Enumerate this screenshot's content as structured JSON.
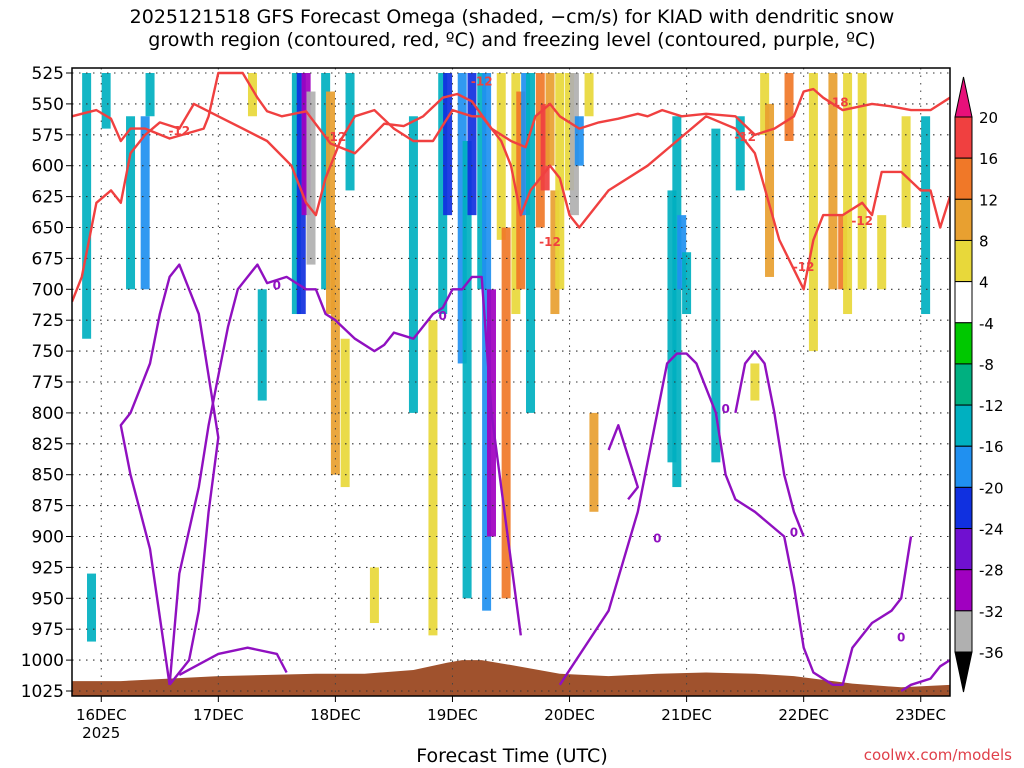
{
  "title": "2025121518 GFS Forecast Omega (shaded, −cm/s) for KIAD with dendritic snow\ngrowth region (contoured, red, ºC) and freezing level (contoured, purple, ºC)",
  "x_axis_title": "Forecast Time (UTC)",
  "credit": "coolwx.com/models",
  "chart_data": {
    "type": "heatmap",
    "title": "2025121518 GFS Forecast Omega (shaded, −cm/s) for KIAD with dendritic snow growth region (contoured, red, ºC) and freezing level (contoured, purple, ºC)",
    "xlabel": "Forecast Time (UTC)",
    "ylabel": "",
    "y_scale": "pressure (reversed)",
    "y_ticks": [
      525,
      550,
      575,
      600,
      625,
      650,
      675,
      700,
      725,
      750,
      775,
      800,
      825,
      850,
      875,
      900,
      925,
      950,
      975,
      1000,
      1025
    ],
    "ylim": [
      1025,
      525
    ],
    "x_ticks": [
      {
        "label": "16DEC",
        "sublabel": "2025",
        "hour": 6
      },
      {
        "label": "17DEC",
        "hour": 30
      },
      {
        "label": "18DEC",
        "hour": 54
      },
      {
        "label": "19DEC",
        "hour": 78
      },
      {
        "label": "20DEC",
        "hour": 102
      },
      {
        "label": "21DEC",
        "hour": 126
      },
      {
        "label": "22DEC",
        "hour": 150
      },
      {
        "label": "23DEC",
        "hour": 174
      }
    ],
    "xlim": [
      0,
      180
    ],
    "grid": true,
    "colorbar": {
      "labels": [
        20,
        16,
        12,
        8,
        4,
        -4,
        -8,
        -12,
        -16,
        -20,
        -24,
        -28,
        -32,
        -36
      ],
      "colors": [
        "#e8107a",
        "#f04040",
        "#f07828",
        "#e8a030",
        "#e8d83a",
        "#ffffff",
        "#00c800",
        "#00b080",
        "#00b0c0",
        "#2090f0",
        "#1030e0",
        "#7010d0",
        "#a000c0",
        "#b0b0b0",
        "#000000"
      ]
    },
    "omega_shading": [
      {
        "hour": 3,
        "p_top": 525,
        "p_bot": 740,
        "value": -8
      },
      {
        "hour": 4,
        "p_top": 930,
        "p_bot": 985,
        "value": -8
      },
      {
        "hour": 7,
        "p_top": 525,
        "p_bot": 570,
        "value": -8
      },
      {
        "hour": 12,
        "p_top": 560,
        "p_bot": 700,
        "value": -8
      },
      {
        "hour": 15,
        "p_top": 560,
        "p_bot": 700,
        "value": -12
      },
      {
        "hour": 16,
        "p_top": 525,
        "p_bot": 560,
        "value": -8
      },
      {
        "hour": 37,
        "p_top": 525,
        "p_bot": 560,
        "value": 4
      },
      {
        "hour": 39,
        "p_top": 700,
        "p_bot": 790,
        "value": -8
      },
      {
        "hour": 46,
        "p_top": 525,
        "p_bot": 720,
        "value": -8
      },
      {
        "hour": 47,
        "p_top": 525,
        "p_bot": 720,
        "value": -16
      },
      {
        "hour": 48,
        "p_top": 525,
        "p_bot": 640,
        "value": -24
      },
      {
        "hour": 49,
        "p_top": 540,
        "p_bot": 680,
        "value": -28
      },
      {
        "hour": 52,
        "p_top": 525,
        "p_bot": 700,
        "value": -8
      },
      {
        "hour": 53,
        "p_top": 540,
        "p_bot": 720,
        "value": 8
      },
      {
        "hour": 54,
        "p_top": 650,
        "p_bot": 850,
        "value": 8
      },
      {
        "hour": 56,
        "p_top": 740,
        "p_bot": 860,
        "value": 4
      },
      {
        "hour": 57,
        "p_top": 525,
        "p_bot": 620,
        "value": -8
      },
      {
        "hour": 62,
        "p_top": 925,
        "p_bot": 970,
        "value": 4
      },
      {
        "hour": 70,
        "p_top": 560,
        "p_bot": 800,
        "value": -8
      },
      {
        "hour": 74,
        "p_top": 725,
        "p_bot": 980,
        "value": 4
      },
      {
        "hour": 76,
        "p_top": 525,
        "p_bot": 720,
        "value": -8
      },
      {
        "hour": 77,
        "p_top": 525,
        "p_bot": 640,
        "value": -16
      },
      {
        "hour": 80,
        "p_top": 525,
        "p_bot": 760,
        "value": -12
      },
      {
        "hour": 81,
        "p_top": 580,
        "p_bot": 950,
        "value": -8
      },
      {
        "hour": 82,
        "p_top": 525,
        "p_bot": 640,
        "value": -16
      },
      {
        "hour": 84,
        "p_top": 525,
        "p_bot": 700,
        "value": -8
      },
      {
        "hour": 85,
        "p_top": 525,
        "p_bot": 960,
        "value": -12
      },
      {
        "hour": 86,
        "p_top": 700,
        "p_bot": 900,
        "value": -24
      },
      {
        "hour": 88,
        "p_top": 525,
        "p_bot": 660,
        "value": 4
      },
      {
        "hour": 89,
        "p_top": 650,
        "p_bot": 950,
        "value": 12
      },
      {
        "hour": 91,
        "p_top": 525,
        "p_bot": 720,
        "value": 4
      },
      {
        "hour": 92,
        "p_top": 540,
        "p_bot": 700,
        "value": 12
      },
      {
        "hour": 93,
        "p_top": 525,
        "p_bot": 640,
        "value": -12
      },
      {
        "hour": 94,
        "p_top": 525,
        "p_bot": 800,
        "value": -8
      },
      {
        "hour": 96,
        "p_top": 525,
        "p_bot": 650,
        "value": 12
      },
      {
        "hour": 97,
        "p_top": 550,
        "p_bot": 620,
        "value": 16
      },
      {
        "hour": 98,
        "p_top": 525,
        "p_bot": 600,
        "value": 8
      },
      {
        "hour": 99,
        "p_top": 620,
        "p_bot": 720,
        "value": 8
      },
      {
        "hour": 100,
        "p_top": 525,
        "p_bot": 700,
        "value": 4
      },
      {
        "hour": 102,
        "p_top": 525,
        "p_bot": 620,
        "value": 4
      },
      {
        "hour": 103,
        "p_top": 525,
        "p_bot": 640,
        "value": -28
      },
      {
        "hour": 104,
        "p_top": 560,
        "p_bot": 600,
        "value": -12
      },
      {
        "hour": 106,
        "p_top": 525,
        "p_bot": 560,
        "value": 4
      },
      {
        "hour": 107,
        "p_top": 800,
        "p_bot": 880,
        "value": 8
      },
      {
        "hour": 123,
        "p_top": 620,
        "p_bot": 840,
        "value": -8
      },
      {
        "hour": 124,
        "p_top": 560,
        "p_bot": 860,
        "value": -8
      },
      {
        "hour": 125,
        "p_top": 640,
        "p_bot": 700,
        "value": -12
      },
      {
        "hour": 126,
        "p_top": 670,
        "p_bot": 720,
        "value": -8
      },
      {
        "hour": 132,
        "p_top": 570,
        "p_bot": 840,
        "value": -8
      },
      {
        "hour": 137,
        "p_top": 560,
        "p_bot": 620,
        "value": -8
      },
      {
        "hour": 140,
        "p_top": 760,
        "p_bot": 790,
        "value": 4
      },
      {
        "hour": 142,
        "p_top": 525,
        "p_bot": 575,
        "value": 4
      },
      {
        "hour": 143,
        "p_top": 550,
        "p_bot": 690,
        "value": 8
      },
      {
        "hour": 147,
        "p_top": 525,
        "p_bot": 580,
        "value": 12
      },
      {
        "hour": 152,
        "p_top": 525,
        "p_bot": 750,
        "value": 4
      },
      {
        "hour": 156,
        "p_top": 525,
        "p_bot": 700,
        "value": 8
      },
      {
        "hour": 158,
        "p_top": 640,
        "p_bot": 700,
        "value": 12
      },
      {
        "hour": 159,
        "p_top": 525,
        "p_bot": 720,
        "value": 4
      },
      {
        "hour": 162,
        "p_top": 525,
        "p_bot": 700,
        "value": 4
      },
      {
        "hour": 166,
        "p_top": 640,
        "p_bot": 700,
        "value": 4
      },
      {
        "hour": 171,
        "p_top": 560,
        "p_bot": 650,
        "value": 4
      },
      {
        "hour": 175,
        "p_top": 560,
        "p_bot": 720,
        "value": -8
      }
    ],
    "terrain": {
      "color": "#a0522d",
      "x": [
        0,
        10,
        30,
        50,
        60,
        70,
        77,
        80,
        84,
        90,
        100,
        110,
        120,
        130,
        140,
        148,
        160,
        170,
        180
      ],
      "p_surface": [
        1017,
        1017,
        1013,
        1011,
        1011,
        1008,
        1002,
        1000,
        1000,
        1004,
        1011,
        1013,
        1011,
        1010,
        1011,
        1013,
        1019,
        1022,
        1020
      ]
    },
    "dgz_contours": {
      "color": "#f04040",
      "labels": [
        "-12",
        "-12",
        "-12",
        "-12",
        "-18",
        "-12",
        "-12",
        "-12"
      ],
      "upper": {
        "x": [
          0,
          5,
          8,
          10,
          12,
          15,
          20,
          27,
          28,
          30,
          35,
          38,
          40,
          43,
          48,
          53,
          58,
          60,
          64,
          68,
          72,
          76,
          79,
          82,
          86,
          90,
          93,
          95,
          98,
          100,
          104,
          108,
          112,
          116,
          118,
          121,
          125,
          130,
          136,
          140,
          144,
          148,
          150,
          152,
          154,
          158,
          164,
          168,
          172,
          176,
          180
        ],
        "p": [
          560,
          555,
          562,
          580,
          570,
          570,
          578,
          570,
          560,
          525,
          525,
          545,
          556,
          560,
          556,
          582,
          590,
          582,
          566,
          568,
          560,
          545,
          542,
          548,
          570,
          580,
          585,
          560,
          550,
          560,
          570,
          565,
          562,
          558,
          560,
          555,
          560,
          558,
          560,
          575,
          570,
          560,
          540,
          538,
          545,
          555,
          550,
          552,
          555,
          555,
          545
        ]
      },
      "lower": {
        "x": [
          0,
          2,
          5,
          8,
          10,
          12,
          15,
          18,
          22,
          25,
          30,
          35,
          40,
          45,
          48,
          50,
          52,
          55,
          58,
          62,
          66,
          70,
          74,
          78,
          82,
          84,
          86,
          88,
          90,
          92,
          94,
          96,
          98,
          100,
          102,
          104,
          110,
          118,
          124,
          130,
          136,
          140,
          145,
          150,
          152,
          154,
          158,
          162,
          164,
          166,
          170,
          174,
          176,
          178,
          180
        ],
        "p": [
          710,
          690,
          630,
          620,
          630,
          590,
          575,
          565,
          570,
          550,
          560,
          570,
          580,
          600,
          630,
          640,
          610,
          580,
          560,
          555,
          570,
          580,
          580,
          555,
          560,
          560,
          570,
          580,
          600,
          640,
          620,
          610,
          600,
          610,
          640,
          650,
          620,
          600,
          580,
          560,
          570,
          590,
          660,
          700,
          660,
          640,
          640,
          630,
          640,
          605,
          605,
          620,
          620,
          650,
          625
        ]
      }
    },
    "freezing_level": {
      "color": "#9010c0",
      "label": "0",
      "segments": [
        {
          "x": [
            20,
            22,
            26,
            28,
            30,
            32,
            34,
            36,
            38,
            40,
            44,
            48,
            50,
            52,
            54,
            58,
            62,
            64,
            66,
            70,
            74,
            76,
            78,
            80,
            82,
            84,
            86,
            88,
            90,
            92
          ],
          "p": [
            1020,
            930,
            860,
            810,
            770,
            730,
            700,
            690,
            680,
            695,
            690,
            700,
            700,
            720,
            725,
            740,
            750,
            745,
            735,
            740,
            720,
            715,
            700,
            700,
            690,
            690,
            800,
            860,
            920,
            980
          ]
        },
        {
          "x": [
            20,
            24,
            26,
            28,
            30,
            28,
            26,
            24,
            22,
            20,
            18,
            16,
            14,
            12,
            10,
            12,
            14,
            16,
            20
          ],
          "p": [
            1020,
            1000,
            960,
            880,
            820,
            770,
            720,
            700,
            680,
            690,
            720,
            760,
            780,
            800,
            810,
            850,
            880,
            910,
            1020
          ]
        },
        {
          "x": [
            22,
            30,
            36,
            42,
            44
          ],
          "p": [
            1012,
            995,
            990,
            995,
            1010
          ]
        },
        {
          "x": [
            100,
            110,
            116,
            120,
            122,
            124,
            126,
            128,
            130,
            132,
            134,
            136,
            140,
            146,
            148,
            150,
            152,
            156,
            158,
            160,
            164,
            168,
            170,
            172
          ],
          "p": [
            1020,
            960,
            880,
            800,
            760,
            752,
            752,
            760,
            780,
            800,
            850,
            870,
            880,
            900,
            940,
            990,
            1010,
            1020,
            1020,
            990,
            970,
            960,
            950,
            900
          ]
        },
        {
          "x": [
            110,
            112,
            114,
            116,
            114
          ],
          "p": [
            830,
            810,
            835,
            860,
            870
          ]
        },
        {
          "x": [
            136,
            138,
            140,
            142,
            144,
            146,
            148,
            150
          ],
          "p": [
            800,
            760,
            750,
            760,
            800,
            850,
            880,
            900
          ]
        },
        {
          "x": [
            170,
            172,
            176,
            178,
            180
          ],
          "p": [
            1025,
            1020,
            1015,
            1005,
            1000
          ]
        }
      ]
    }
  }
}
